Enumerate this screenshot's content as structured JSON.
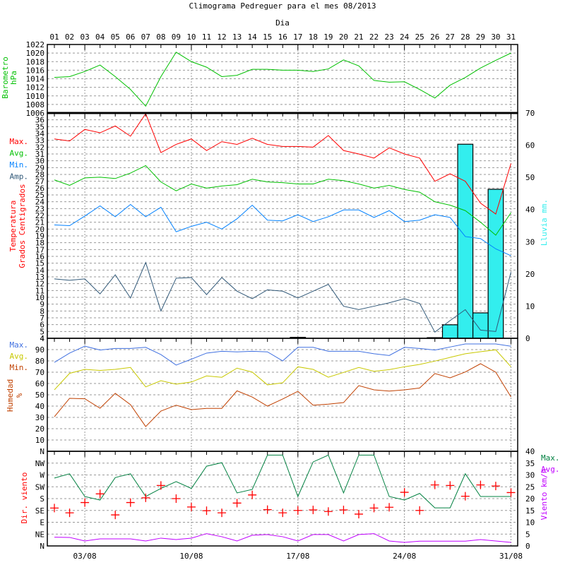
{
  "chart_data": {
    "type": "line",
    "title": "Climograma Pedreguer para el mes 08/2013",
    "xlabel": "Dia",
    "days": [
      "01",
      "02",
      "03",
      "04",
      "05",
      "06",
      "07",
      "08",
      "09",
      "10",
      "11",
      "12",
      "13",
      "14",
      "15",
      "16",
      "17",
      "18",
      "19",
      "20",
      "21",
      "22",
      "23",
      "24",
      "25",
      "26",
      "27",
      "28",
      "29",
      "30",
      "31"
    ],
    "date_ticks": [
      {
        "day": 3,
        "label": "03/08"
      },
      {
        "day": 10,
        "label": "10/08"
      },
      {
        "day": 17,
        "label": "17/08"
      },
      {
        "day": 24,
        "label": "24/08"
      },
      {
        "day": 31,
        "label": "31/08"
      }
    ],
    "colors": {
      "temp_max": "#ff0000",
      "temp_avg": "#00c000",
      "temp_min": "#0080ff",
      "temp_amp": "#305878",
      "rain": "#33eeee",
      "baro": "#00c000",
      "hum_max": "#4070e0",
      "hum_avg": "#c8c800",
      "hum_min": "#c04000",
      "wind_max": "#008040",
      "wind_avg": "#c000ff",
      "wind_dir": "#ff0000"
    },
    "barometer": {
      "ylabel": [
        "Barometro",
        "hPa"
      ],
      "ylim": [
        1006,
        1022
      ],
      "ticks": [
        1006,
        1008,
        1010,
        1012,
        1014,
        1016,
        1018,
        1020,
        1022
      ],
      "values": [
        1014.3,
        1014.5,
        1015.7,
        1017.2,
        1014.5,
        1011.5,
        1007.6,
        1014.5,
        1020.2,
        1018.0,
        1016.7,
        1014.5,
        1014.8,
        1016.2,
        1016.2,
        1016.0,
        1016.0,
        1015.7,
        1016.3,
        1018.4,
        1017.0,
        1013.6,
        1013.2,
        1013.3,
        1011.5,
        1009.5,
        1012.5,
        1014.3,
        1016.5,
        1018.3,
        1020.0
      ]
    },
    "temperature": {
      "ylabel": [
        "Temperatura",
        "Grados Centigrados"
      ],
      "ylim": [
        4,
        37
      ],
      "legend": [
        "Max.",
        "Avg.",
        "Min.",
        "Amp."
      ],
      "series": [
        {
          "name": "Max.",
          "values": [
            33.2,
            32.9,
            34.6,
            34.1,
            35.1,
            33.6,
            36.9,
            31.2,
            32.4,
            33.2,
            31.5,
            32.8,
            32.4,
            33.3,
            32.4,
            32.1,
            32.1,
            32.0,
            33.7,
            31.5,
            31.0,
            30.4,
            31.9,
            31.0,
            30.4,
            27.0,
            28.1,
            27.0,
            23.8,
            22.2,
            29.6
          ]
        },
        {
          "name": "Avg.",
          "values": [
            27.2,
            26.4,
            27.5,
            27.6,
            27.4,
            28.2,
            29.3,
            26.9,
            25.6,
            26.6,
            26.0,
            26.3,
            26.5,
            27.3,
            26.9,
            26.8,
            26.6,
            26.6,
            27.3,
            27.1,
            26.6,
            26.0,
            26.4,
            25.8,
            25.4,
            24.0,
            23.5,
            22.7,
            21.0,
            19.1,
            22.4
          ]
        },
        {
          "name": "Min.",
          "values": [
            20.6,
            20.5,
            21.9,
            23.4,
            21.8,
            23.6,
            21.8,
            23.2,
            19.6,
            20.4,
            21.0,
            20.0,
            21.5,
            23.5,
            21.3,
            21.2,
            22.1,
            21.1,
            21.8,
            22.8,
            22.8,
            21.7,
            22.7,
            21.1,
            21.3,
            22.1,
            21.7,
            18.9,
            18.6,
            17.1,
            16.1
          ]
        },
        {
          "name": "Amp.",
          "values": [
            12.7,
            12.5,
            12.7,
            10.5,
            13.3,
            9.9,
            15.1,
            8.0,
            12.8,
            12.9,
            10.4,
            12.9,
            10.9,
            9.8,
            11.1,
            10.9,
            9.9,
            10.9,
            11.9,
            8.7,
            8.2,
            8.7,
            9.2,
            9.8,
            9.1,
            4.9,
            6.6,
            8.2,
            5.2,
            5.0,
            13.7
          ]
        }
      ]
    },
    "rain": {
      "ylabel": "Lluvia mm.",
      "ylim": [
        0,
        70
      ],
      "ticks": [
        0,
        10,
        20,
        30,
        40,
        50,
        60,
        70
      ],
      "values": [
        0,
        0,
        0,
        0,
        0,
        0,
        0,
        0,
        0,
        0,
        0,
        0,
        0,
        0,
        0,
        0,
        0.3,
        0,
        0,
        0,
        0,
        0,
        0,
        0,
        0,
        0.2,
        4.2,
        60.3,
        7.9,
        46.3,
        0
      ]
    },
    "humidity": {
      "ylabel": [
        "Humedad",
        "%"
      ],
      "ylim": [
        0,
        100
      ],
      "ticks": [
        10,
        20,
        30,
        40,
        50,
        60,
        70,
        80,
        90
      ],
      "legend": [
        "Max.",
        "Avg.",
        "Min."
      ],
      "series": [
        {
          "name": "Max.",
          "values": [
            78.7,
            86.9,
            93.0,
            89.6,
            91.0,
            91.0,
            92.0,
            85.6,
            76.3,
            81.5,
            86.9,
            88.5,
            88.0,
            88.5,
            88.0,
            80.0,
            92.0,
            92.0,
            88.5,
            88.5,
            88.5,
            86.3,
            84.8,
            92.0,
            91.0,
            89.6,
            92.3,
            95.0,
            95.0,
            95.0,
            93.0
          ]
        },
        {
          "name": "Avg.",
          "values": [
            54.4,
            69.0,
            72.5,
            71.6,
            72.5,
            74.2,
            57.0,
            62.5,
            59.4,
            61.3,
            66.7,
            65.5,
            73.6,
            70.1,
            58.8,
            60.6,
            74.8,
            72.5,
            65.6,
            69.8,
            74.2,
            70.8,
            72.3,
            74.8,
            76.9,
            79.8,
            83.1,
            86.3,
            88.1,
            89.8,
            74.8
          ]
        },
        {
          "name": "Min.",
          "values": [
            30.6,
            46.9,
            46.5,
            38.1,
            51.3,
            41.3,
            21.9,
            35.6,
            40.8,
            36.9,
            38.0,
            38.0,
            53.5,
            48.0,
            40.0,
            46.3,
            53.1,
            40.8,
            41.7,
            43.1,
            58.1,
            54.4,
            53.3,
            54.4,
            56.0,
            68.8,
            65.0,
            70.2,
            77.5,
            70.0,
            48.1
          ]
        }
      ]
    },
    "wind": {
      "dir_label": "Dir. viento",
      "speed_label": "Viento km/h",
      "dir_ticks": [
        "N",
        "NE",
        "E",
        "SE",
        "S",
        "SW",
        "W",
        "NW",
        "N"
      ],
      "ylim": [
        0,
        40
      ],
      "ticks": [
        0,
        5,
        10,
        15,
        20,
        25,
        30,
        35,
        40
      ],
      "legend": [
        "Max.",
        "Avg."
      ],
      "series": [
        {
          "name": "Max.",
          "values": [
            28.7,
            30.5,
            20.9,
            19.4,
            28.9,
            30.5,
            20.9,
            24.3,
            27.2,
            24.3,
            33.7,
            35.2,
            22.4,
            23.9,
            38.4,
            38.4,
            20.9,
            35.5,
            38.4,
            22.4,
            38.4,
            38.4,
            20.9,
            19.4,
            22.2,
            16.1,
            16.1,
            30.5,
            20.9,
            20.9,
            20.9
          ]
        },
        {
          "name": "Avg.",
          "values": [
            3.7,
            3.6,
            2.1,
            3.0,
            3.0,
            3.0,
            2.1,
            3.3,
            2.7,
            3.3,
            5.2,
            3.9,
            2.1,
            4.5,
            4.8,
            3.9,
            2.1,
            4.8,
            4.8,
            2.1,
            4.8,
            5.2,
            2.1,
            1.5,
            2.0,
            2.0,
            2.0,
            2.0,
            2.7,
            2.1,
            1.5
          ]
        }
      ],
      "direction_deg": [
        144,
        126,
        165,
        198,
        118,
        165,
        183,
        230,
        180,
        148,
        134,
        126,
        163,
        194,
        138,
        126,
        135,
        137,
        131,
        137,
        121,
        144,
        147,
        204,
        135,
        232,
        230,
        189,
        232,
        228,
        203
      ]
    }
  }
}
